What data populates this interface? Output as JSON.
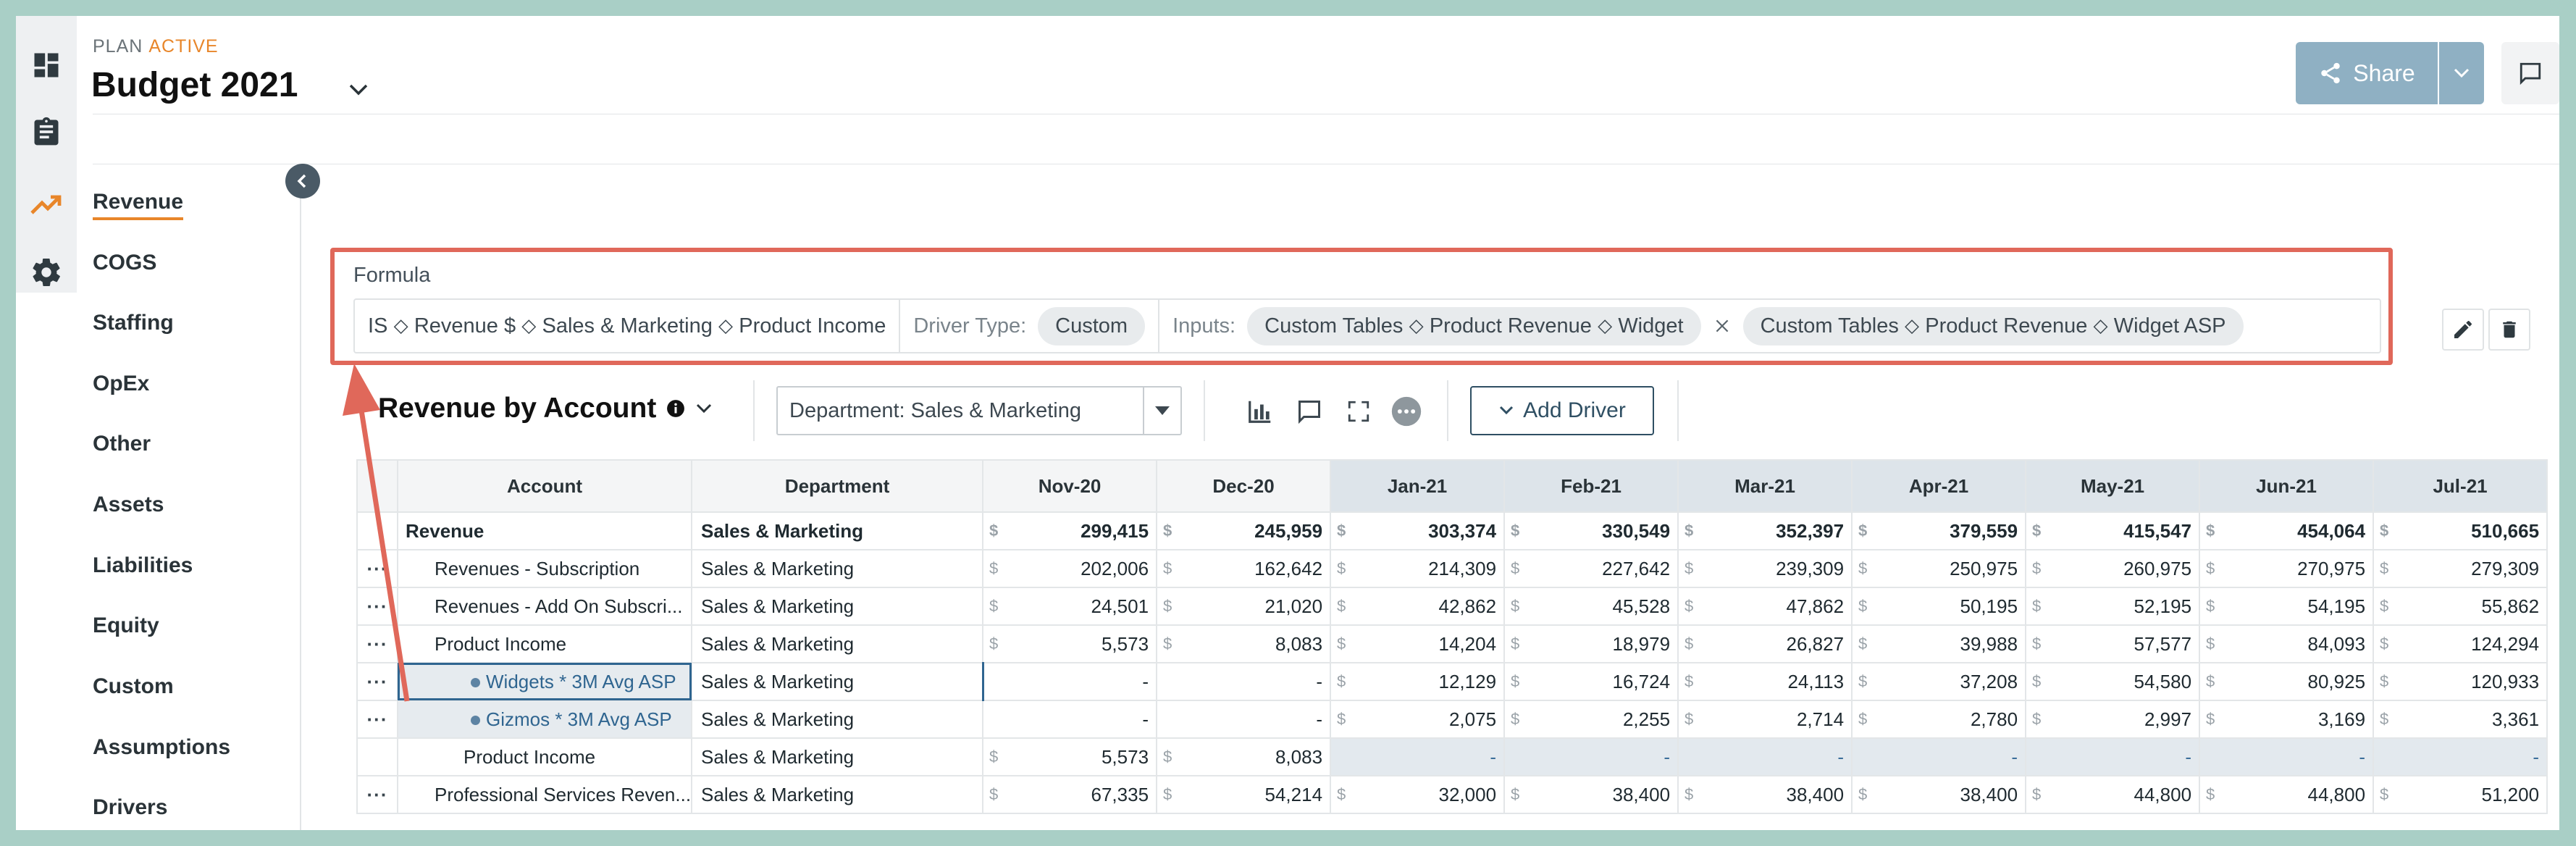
{
  "header": {
    "plan_label": "PLAN",
    "plan_status": "ACTIVE",
    "title": "Budget 2021",
    "share_label": "Share"
  },
  "rail": {
    "icons": [
      "dashboard-icon",
      "clipboard-icon",
      "trending-icon",
      "gear-icon"
    ]
  },
  "nav": {
    "items": [
      {
        "label": "Revenue",
        "active": true
      },
      {
        "label": "COGS"
      },
      {
        "label": "Staffing"
      },
      {
        "label": "OpEx"
      },
      {
        "label": "Other"
      },
      {
        "label": "Assets"
      },
      {
        "label": "Liabilities"
      },
      {
        "label": "Equity"
      },
      {
        "label": "Custom"
      },
      {
        "label": "Assumptions"
      },
      {
        "label": "Drivers"
      }
    ]
  },
  "formula": {
    "label": "Formula",
    "path": "IS ⬦ Revenue $ ⬦ Sales & Marketing ⬦ Product Income",
    "driver_type_label": "Driver Type:",
    "driver_type_value": "Custom",
    "inputs_label": "Inputs:",
    "input_1": "Custom Tables ⬦ Product Revenue ⬦ Widget",
    "input_2": "Custom Tables ⬦ Product Revenue ⬦ Widget ASP"
  },
  "toolbar": {
    "sheet_title": "Revenue by Account",
    "department_filter": "Department: Sales & Marketing",
    "add_driver_label": "Add Driver"
  },
  "table": {
    "columns": [
      "Account",
      "Department",
      "Nov-20",
      "Dec-20",
      "Jan-21",
      "Feb-21",
      "Mar-21",
      "Apr-21",
      "May-21",
      "Jun-21",
      "Jul-21"
    ],
    "currency_symbol": "$",
    "rows": [
      {
        "menu": "",
        "account": "Revenue",
        "department": "Sales & Marketing",
        "values": [
          "299,415",
          "245,959",
          "303,374",
          "330,549",
          "352,397",
          "379,559",
          "415,547",
          "454,064",
          "510,665"
        ]
      },
      {
        "menu": "···",
        "account": "Revenues - Subscription",
        "department": "Sales & Marketing",
        "values": [
          "202,006",
          "162,642",
          "214,309",
          "227,642",
          "239,309",
          "250,975",
          "260,975",
          "270,975",
          "279,309"
        ]
      },
      {
        "menu": "···",
        "account": "Revenues - Add On Subscri...",
        "department": "Sales & Marketing",
        "values": [
          "24,501",
          "21,020",
          "42,862",
          "45,528",
          "47,862",
          "50,195",
          "52,195",
          "54,195",
          "55,862"
        ]
      },
      {
        "menu": "···",
        "account": "Product Income",
        "department": "Sales & Marketing",
        "values": [
          "5,573",
          "8,083",
          "14,204",
          "18,979",
          "26,827",
          "39,988",
          "57,577",
          "84,093",
          "124,294"
        ]
      },
      {
        "menu": "···",
        "account": "Widgets * 3M Avg ASP",
        "department": "Sales & Marketing",
        "values": [
          "-",
          "-",
          "12,129",
          "16,724",
          "24,113",
          "37,208",
          "54,580",
          "80,925",
          "120,933"
        ]
      },
      {
        "menu": "···",
        "account": "Gizmos * 3M Avg ASP",
        "department": "Sales & Marketing",
        "values": [
          "-",
          "-",
          "2,075",
          "2,255",
          "2,714",
          "2,780",
          "2,997",
          "3,169",
          "3,361"
        ]
      },
      {
        "menu": "",
        "account": "Product Income",
        "department": "Sales & Marketing",
        "values": [
          "5,573",
          "8,083",
          "-",
          "-",
          "-",
          "-",
          "-",
          "-",
          "-"
        ]
      },
      {
        "menu": "···",
        "account": "Professional Services Reven...",
        "department": "Sales & Marketing",
        "values": [
          "67,335",
          "54,214",
          "32,000",
          "38,400",
          "38,400",
          "38,400",
          "44,800",
          "44,800",
          "51,200"
        ]
      }
    ]
  },
  "colors": {
    "accent": "#e8862a",
    "share_button": "#8fb0c3",
    "annotation": "#e0685a",
    "driver_text": "#2f6590"
  }
}
